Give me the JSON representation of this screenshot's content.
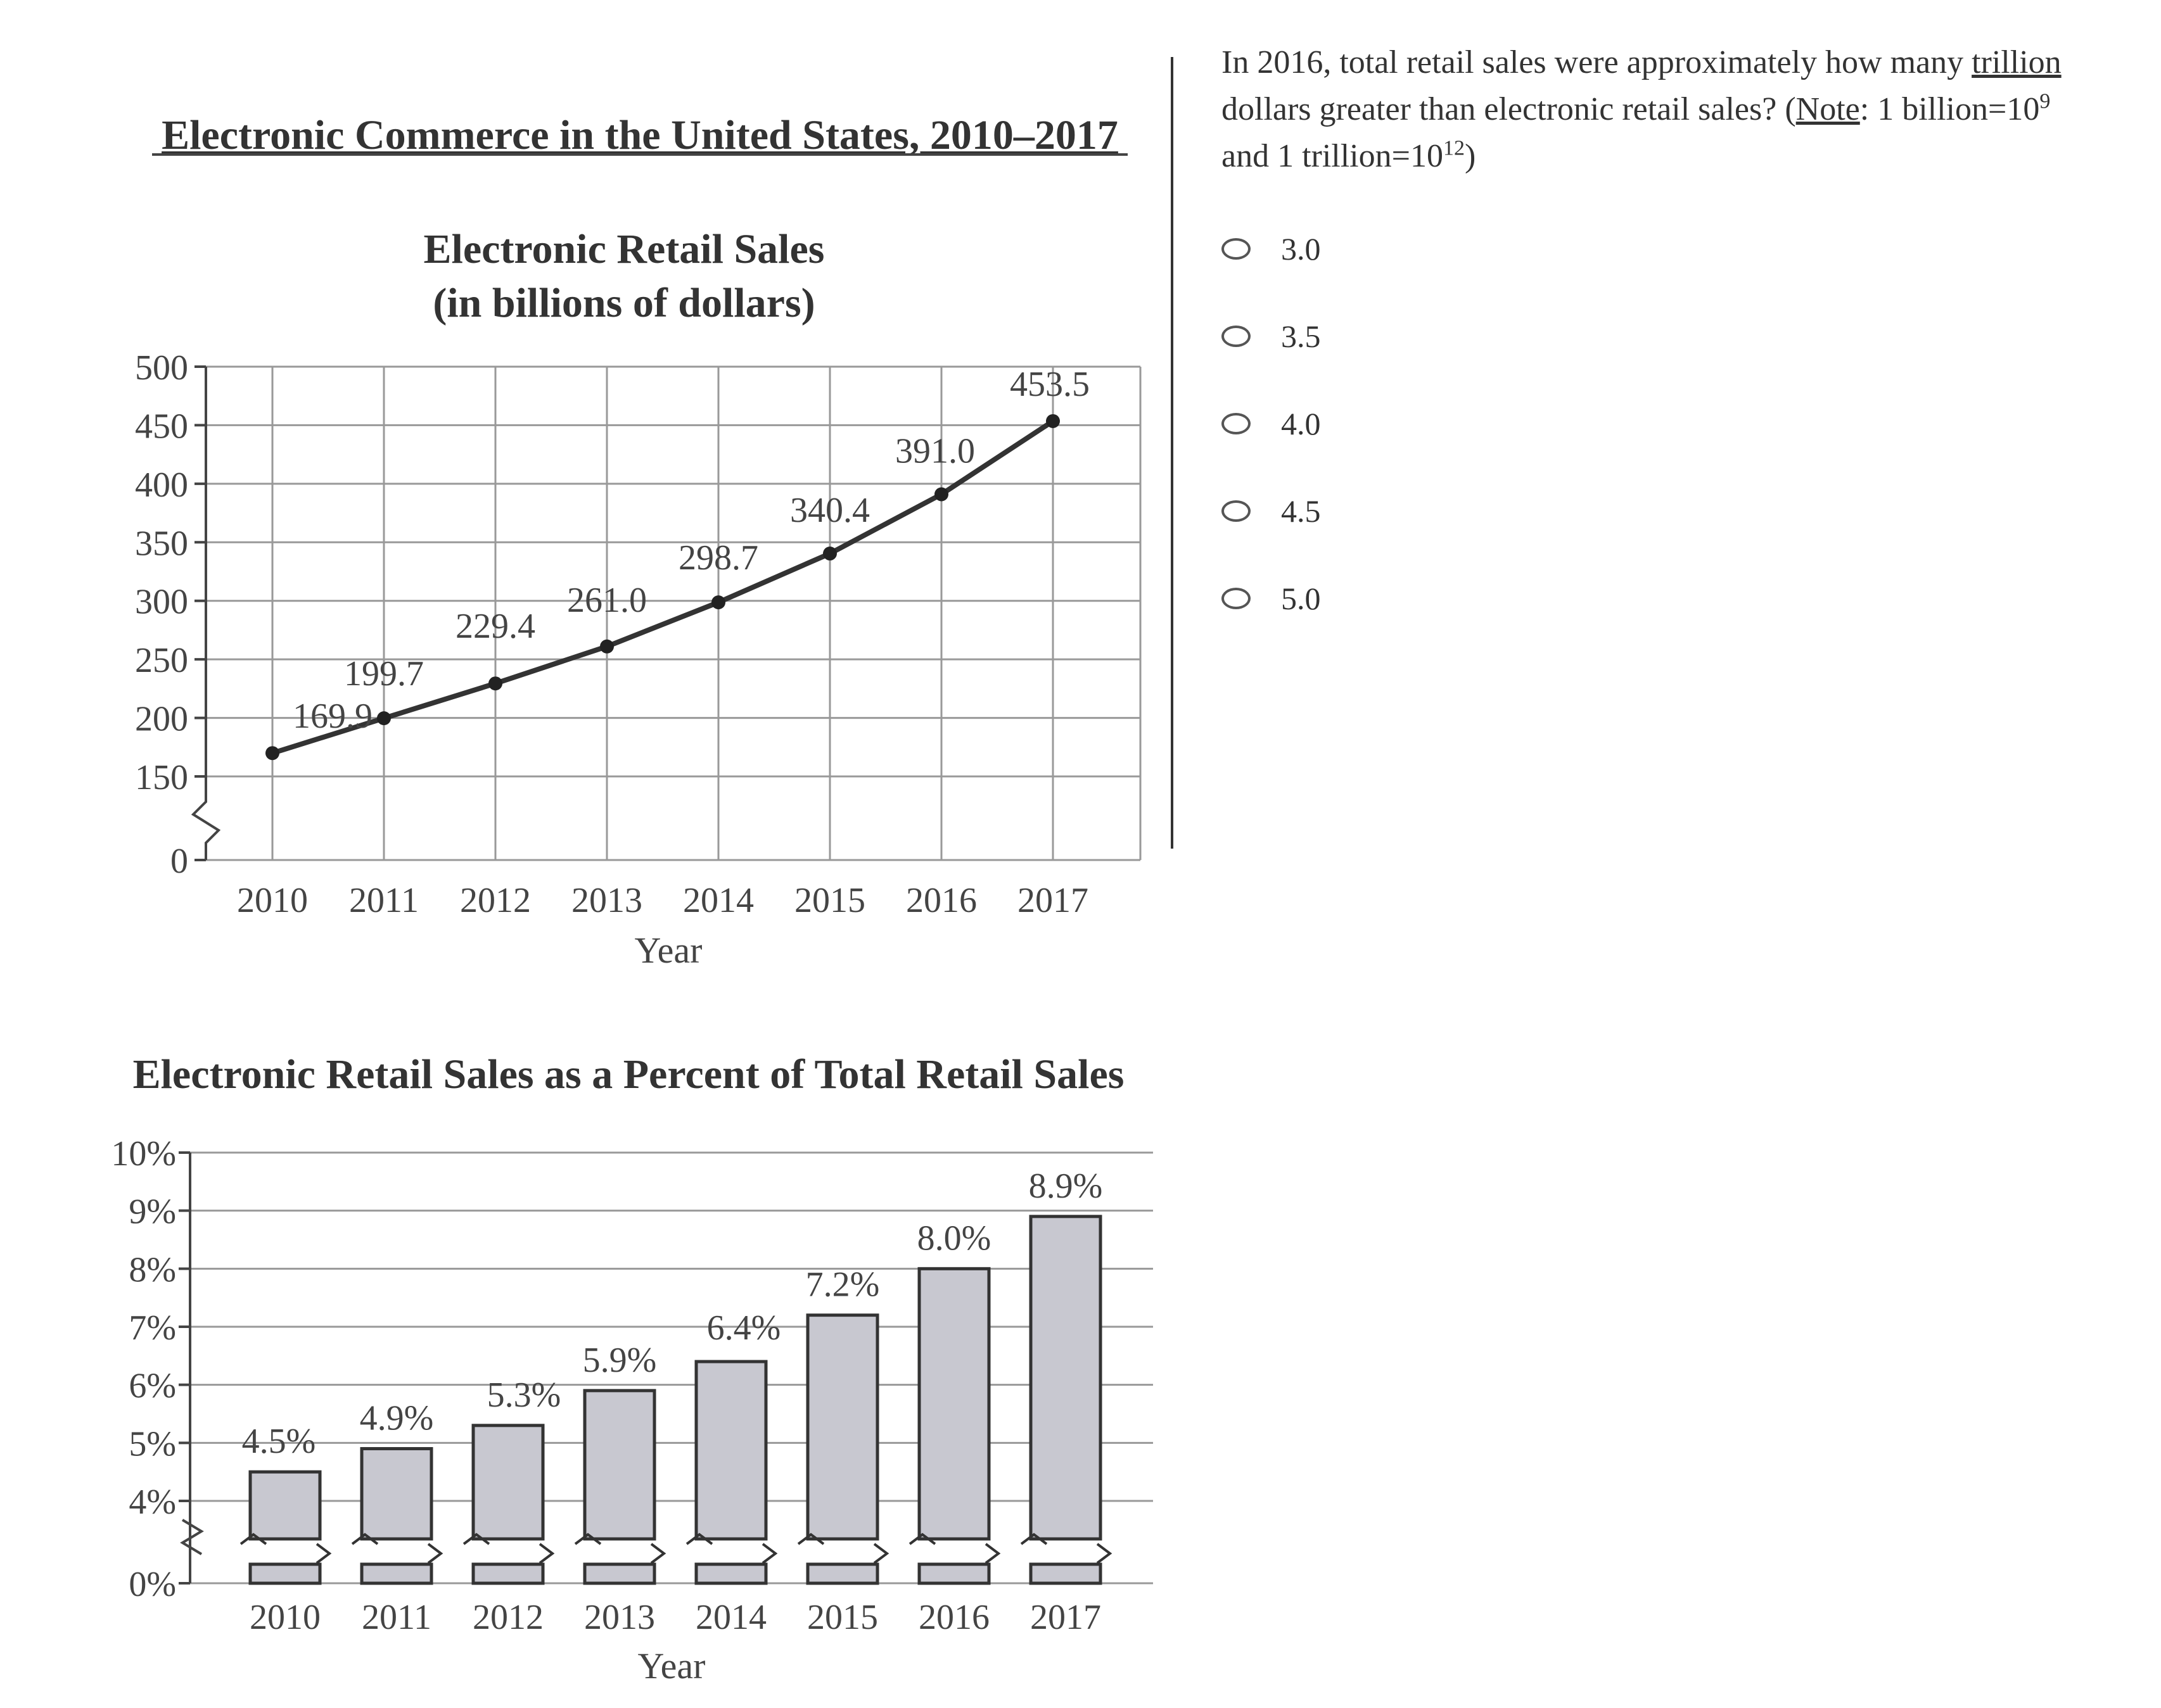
{
  "figure_title": "Electronic Commerce in the United States, 2010–2017",
  "chart_data": [
    {
      "type": "line",
      "title": "Electronic Retail Sales",
      "subtitle": "(in billions of dollars)",
      "xlabel": "Year",
      "ylabel": "",
      "categories": [
        "2010",
        "2011",
        "2012",
        "2013",
        "2014",
        "2015",
        "2016",
        "2017"
      ],
      "values": [
        169.9,
        199.7,
        229.4,
        261.0,
        298.7,
        340.4,
        391.0,
        453.5
      ],
      "data_labels": [
        "169.9",
        "199.7",
        "229.4",
        "261.0",
        "298.7",
        "340.4",
        "391.0",
        "453.5"
      ],
      "y_ticks": [
        0,
        150,
        200,
        250,
        300,
        350,
        400,
        450,
        500
      ],
      "y_tick_labels": [
        "0",
        "150",
        "200",
        "250",
        "300",
        "350",
        "400",
        "450",
        "500"
      ],
      "ylim": [
        150,
        500
      ],
      "axis_break": true,
      "grid": true
    },
    {
      "type": "bar",
      "title": "Electronic Retail Sales as a Percent of Total Retail Sales",
      "xlabel": "Year",
      "ylabel": "",
      "categories": [
        "2010",
        "2011",
        "2012",
        "2013",
        "2014",
        "2015",
        "2016",
        "2017"
      ],
      "values": [
        4.5,
        4.9,
        5.3,
        5.9,
        6.4,
        7.2,
        8.0,
        8.9
      ],
      "data_labels": [
        "4.5%",
        "4.9%",
        "5.3%",
        "5.9%",
        "6.4%",
        "7.2%",
        "8.0%",
        "8.9%"
      ],
      "y_ticks": [
        0,
        4,
        5,
        6,
        7,
        8,
        9,
        10
      ],
      "y_tick_labels": [
        "0%",
        "4%",
        "5%",
        "6%",
        "7%",
        "8%",
        "9%",
        "10%"
      ],
      "ylim": [
        4,
        10
      ],
      "axis_break": true,
      "grid": true,
      "bar_color": "#c8c8d0"
    }
  ],
  "question": {
    "text_1": "In 2016, total retail sales were approximately how many ",
    "text_trillion": "trillion",
    "text_2": " dollars greater than electronic retail sales? (",
    "text_note": "Note",
    "text_3": ": 1 billion=10",
    "sup_9": "9",
    "text_4": " and 1 trillion=10",
    "sup_12": "12",
    "text_5": ")"
  },
  "options": [
    "3.0",
    "3.5",
    "4.0",
    "4.5",
    "5.0"
  ]
}
